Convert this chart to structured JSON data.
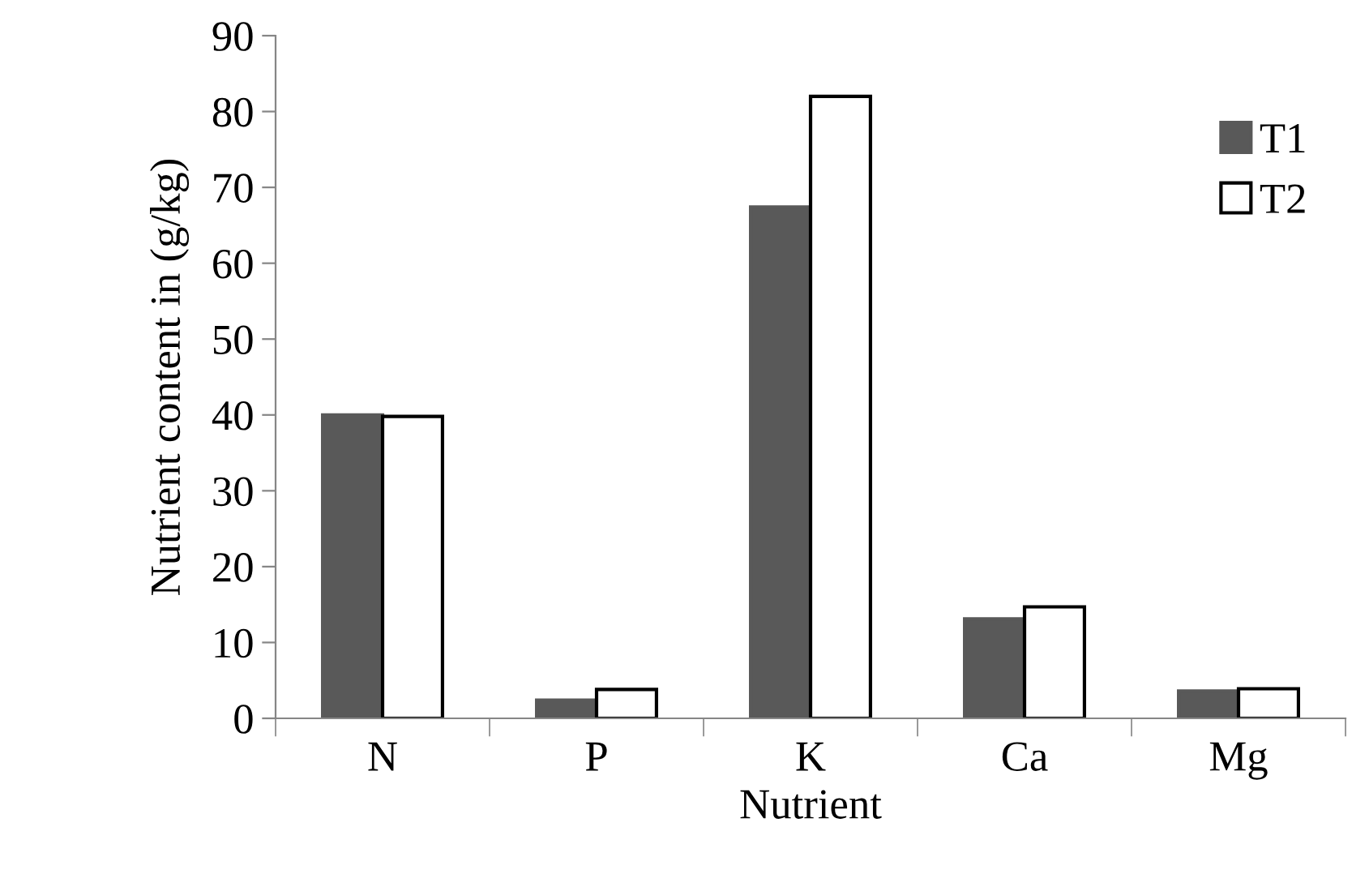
{
  "chart_data": {
    "type": "bar",
    "xlabel": "Nutrient",
    "ylabel": "Nutrient content in (g/kg)",
    "categories": [
      "N",
      "P",
      "K",
      "Ca",
      "Mg"
    ],
    "series": [
      {
        "name": "T1",
        "color": "#595959",
        "values": [
          40.0,
          2.4,
          67.4,
          13.1,
          3.6
        ]
      },
      {
        "name": "T2",
        "color": "#ffffff",
        "values": [
          39.8,
          3.8,
          82.0,
          14.7,
          3.9
        ]
      }
    ],
    "ylim": [
      0,
      90
    ],
    "yticks": [
      0,
      10,
      20,
      30,
      40,
      50,
      60,
      70,
      80,
      90
    ],
    "grid": false,
    "legend": "right"
  }
}
